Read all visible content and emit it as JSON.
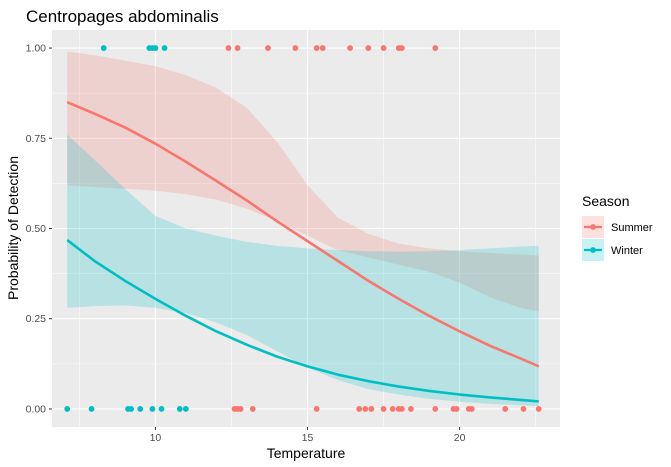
{
  "chart_data": {
    "type": "line",
    "title": "Centropages abdominalis",
    "xlabel": "Temperature",
    "ylabel": "Probability of Detection",
    "xlim": [
      6.6,
      23.3
    ],
    "ylim": [
      -0.05,
      1.05
    ],
    "x_ticks": [
      10,
      15,
      20
    ],
    "y_ticks": [
      0.0,
      0.25,
      0.5,
      0.75,
      1.0
    ],
    "x_tick_labels": [
      "10",
      "15",
      "20"
    ],
    "y_tick_labels": [
      "0.00",
      "0.25",
      "0.50",
      "0.75",
      "1.00"
    ],
    "grid": true,
    "legend": {
      "title": "Season",
      "position": "right",
      "entries": [
        "Summer",
        "Winter"
      ]
    },
    "series": [
      {
        "name": "Summer",
        "color": "#F8766D",
        "curve_x": [
          7.1,
          8.0,
          9.0,
          10.0,
          11.0,
          12.0,
          13.0,
          14.0,
          15.0,
          16.0,
          17.0,
          18.0,
          19.0,
          20.0,
          21.0,
          22.0,
          22.6
        ],
        "curve_y": [
          0.85,
          0.818,
          0.78,
          0.735,
          0.685,
          0.632,
          0.578,
          0.52,
          0.465,
          0.41,
          0.355,
          0.305,
          0.258,
          0.215,
          0.175,
          0.14,
          0.118
        ],
        "ci_lower": [
          0.62,
          0.615,
          0.61,
          0.605,
          0.595,
          0.58,
          0.555,
          0.52,
          0.48,
          0.44,
          0.42,
          0.4,
          0.38,
          0.35,
          0.31,
          0.28,
          0.27
        ],
        "ci_upper": [
          0.99,
          0.98,
          0.965,
          0.95,
          0.925,
          0.89,
          0.835,
          0.74,
          0.62,
          0.53,
          0.485,
          0.458,
          0.445,
          0.437,
          0.432,
          0.428,
          0.425
        ],
        "points_y1": [
          12.4,
          12.7,
          13.7,
          14.6,
          15.3,
          15.5,
          16.4,
          17.0,
          17.5,
          18.0,
          18.1,
          19.2
        ],
        "points_y0": [
          12.6,
          12.7,
          12.8,
          13.2,
          15.3,
          16.7,
          16.9,
          17.1,
          17.5,
          17.8,
          18.0,
          18.1,
          18.4,
          19.2,
          19.8,
          19.9,
          20.3,
          20.4,
          21.5,
          22.1,
          22.6
        ]
      },
      {
        "name": "Winter",
        "color": "#00BFC4",
        "curve_x": [
          7.1,
          8.0,
          9.0,
          10.0,
          11.0,
          12.0,
          13.0,
          14.0,
          15.0,
          16.0,
          17.0,
          18.0,
          19.0,
          20.0,
          21.0,
          22.0,
          22.6
        ],
        "curve_y": [
          0.468,
          0.41,
          0.355,
          0.305,
          0.258,
          0.215,
          0.178,
          0.145,
          0.118,
          0.095,
          0.077,
          0.062,
          0.05,
          0.04,
          0.032,
          0.025,
          0.021
        ],
        "ci_lower": [
          0.28,
          0.285,
          0.287,
          0.28,
          0.265,
          0.24,
          0.205,
          0.16,
          0.115,
          0.08,
          0.055,
          0.04,
          0.028,
          0.02,
          0.014,
          0.01,
          0.008
        ],
        "ci_upper": [
          0.76,
          0.69,
          0.61,
          0.535,
          0.5,
          0.48,
          0.463,
          0.452,
          0.445,
          0.44,
          0.437,
          0.436,
          0.437,
          0.44,
          0.445,
          0.45,
          0.452
        ],
        "points_y1": [
          8.3,
          9.8,
          9.9,
          10.0,
          10.3
        ],
        "points_y0": [
          7.1,
          7.9,
          9.1,
          9.2,
          9.5,
          9.9,
          10.2,
          10.8,
          11.0
        ]
      }
    ]
  }
}
